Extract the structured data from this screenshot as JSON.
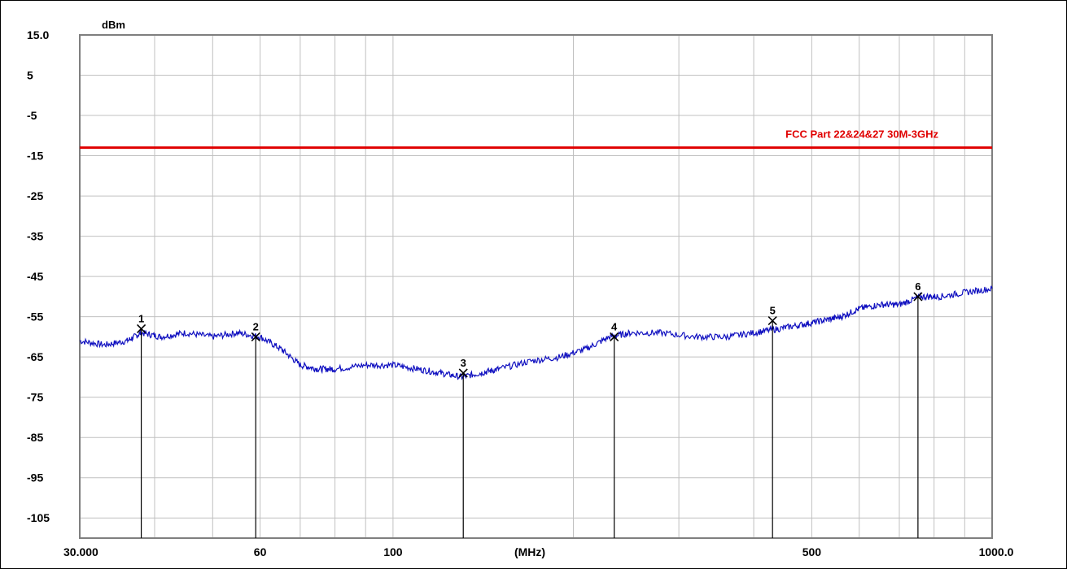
{
  "chart_data": {
    "type": "line",
    "ylabel": "dBm",
    "xlabel": "(MHz)",
    "x_scale": "log",
    "xlim": [
      30,
      1000
    ],
    "ylim": [
      -110,
      15
    ],
    "grid": true,
    "y_ticks": [
      15,
      5,
      -5,
      -15,
      -25,
      -35,
      -45,
      -55,
      -65,
      -75,
      -85,
      -95,
      -105
    ],
    "y_tick_labels": [
      "15.0",
      "5",
      "-5",
      "-15",
      "-25",
      "-35",
      "-45",
      "-55",
      "-65",
      "-75",
      "-85",
      "-95",
      "-105"
    ],
    "x_tick_labels": [
      {
        "value": 30,
        "text": "30.000"
      },
      {
        "value": 60,
        "text": "60"
      },
      {
        "value": 100,
        "text": "100"
      },
      {
        "value": 500,
        "text": "500"
      },
      {
        "value": 1000,
        "text": "1000.0"
      }
    ],
    "limit_line": {
      "label": "FCC Part 22&24&27 30M-3GHz",
      "value": -13,
      "color": "#e00000"
    },
    "series": [
      {
        "color": "#1010c0",
        "x": [
          30,
          33,
          36,
          38,
          41,
          45,
          50,
          55,
          60,
          65,
          70,
          75,
          80,
          90,
          100,
          110,
          120,
          130,
          140,
          150,
          170,
          190,
          210,
          230,
          250,
          280,
          320,
          360,
          400,
          440,
          480,
          520,
          560,
          600,
          650,
          700,
          760,
          820,
          900,
          1000
        ],
        "values": [
          -61,
          -62,
          -61,
          -59,
          -60,
          -59,
          -60,
          -59,
          -60,
          -63,
          -67,
          -68,
          -68,
          -67,
          -67,
          -68,
          -69,
          -70,
          -69,
          -68,
          -66,
          -65,
          -63,
          -60,
          -59,
          -59,
          -60,
          -60,
          -59,
          -58,
          -57,
          -56,
          -55,
          -53,
          -52,
          -52,
          -50,
          -50,
          -49,
          -48
        ]
      }
    ],
    "markers": [
      {
        "label": "1",
        "x": 38,
        "y": -58
      },
      {
        "label": "2",
        "x": 59,
        "y": -60
      },
      {
        "label": "3",
        "x": 131,
        "y": -69
      },
      {
        "label": "4",
        "x": 234,
        "y": -60
      },
      {
        "label": "5",
        "x": 430,
        "y": -56
      },
      {
        "label": "6",
        "x": 752,
        "y": -50
      }
    ]
  },
  "colors": {
    "grid": "#c0c0c0",
    "axis": "#7f7f7f",
    "trace": "#1010c0",
    "limit": "#e00000",
    "marker": "#000000"
  }
}
